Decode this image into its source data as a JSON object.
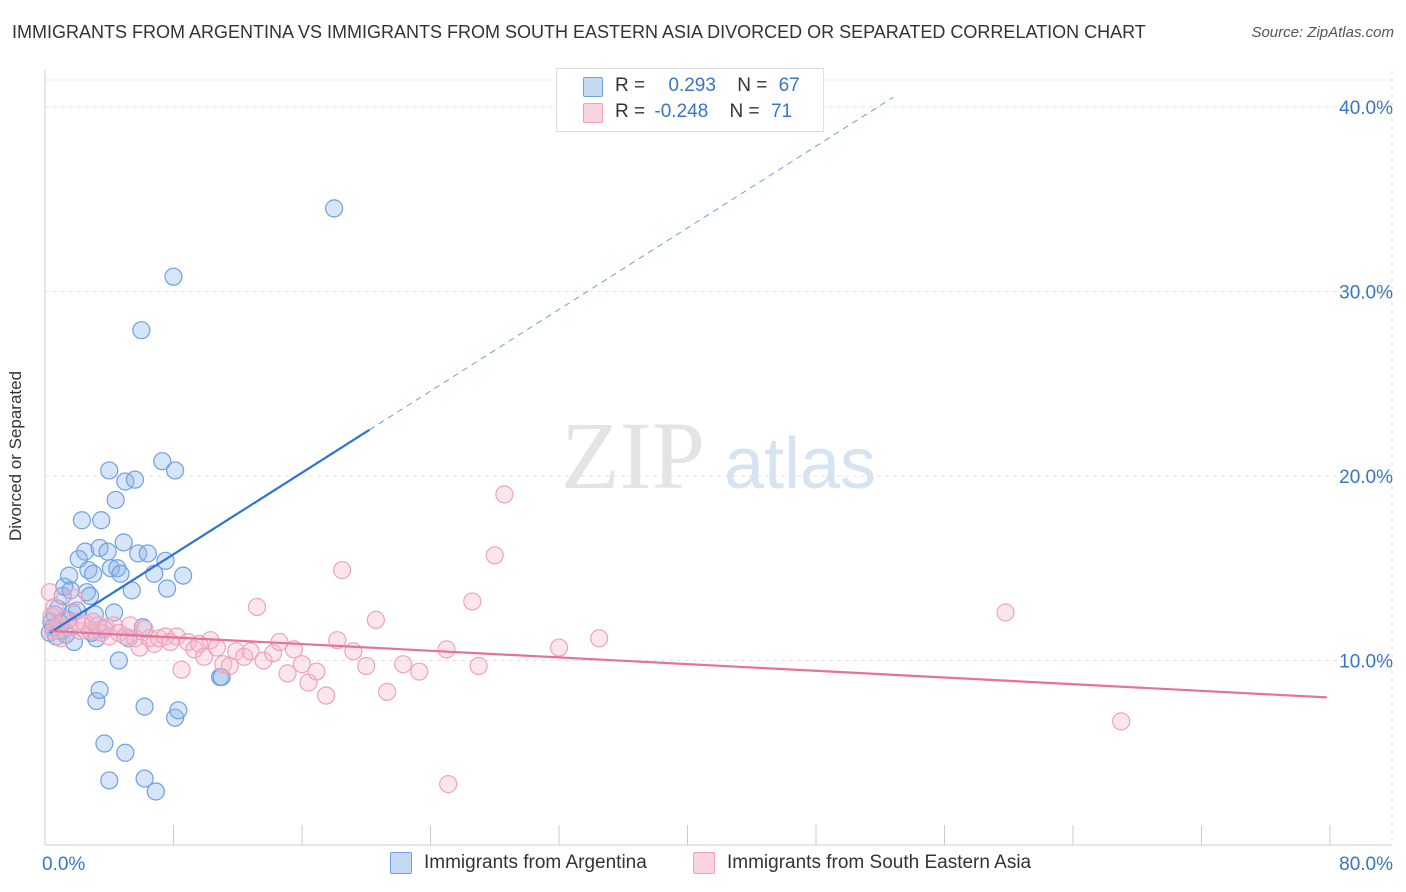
{
  "title": "IMMIGRANTS FROM ARGENTINA VS IMMIGRANTS FROM SOUTH EASTERN ASIA DIVORCED OR SEPARATED CORRELATION CHART",
  "source": "Source: ZipAtlas.com",
  "watermark": {
    "zip": "ZIP",
    "atlas": "atlas"
  },
  "legend": {
    "rows": [
      {
        "r_label": "R =",
        "r_value": "0.293",
        "n_label": "N =",
        "n_value": "67",
        "color": "#6fa0e0"
      },
      {
        "r_label": "R =",
        "r_value": "-0.248",
        "n_label": "N =",
        "n_value": "71",
        "color": "#f0a0b8"
      }
    ]
  },
  "colors": {
    "blue": "#6fa0e0",
    "blue_line": "#2f74d0",
    "pink": "#f0a0b8",
    "pink_line": "#e8709a",
    "tick_label": "#3a75c4"
  },
  "chart_data": {
    "type": "scatter",
    "title": "IMMIGRANTS FROM ARGENTINA VS IMMIGRANTS FROM SOUTH EASTERN ASIA DIVORCED OR SEPARATED CORRELATION CHART",
    "xlabel": "",
    "ylabel": "Divorced or Separated",
    "xlim": [
      0,
      80
    ],
    "ylim": [
      0,
      42
    ],
    "x_tick_labels": [
      "0.0%",
      "80.0%"
    ],
    "y_ticks": [
      10,
      20,
      30,
      40
    ],
    "y_tick_labels": [
      "10.0%",
      "20.0%",
      "30.0%",
      "40.0%"
    ],
    "grid": true,
    "legend_position": "top-center",
    "series": [
      {
        "name": "Immigrants from Argentina",
        "color": "#6fa0e0",
        "points": [
          [
            0.3,
            11.5
          ],
          [
            0.4,
            12.1
          ],
          [
            0.5,
            11.8
          ],
          [
            0.6,
            12.5
          ],
          [
            0.7,
            11.3
          ],
          [
            0.8,
            12.8
          ],
          [
            0.9,
            11.6
          ],
          [
            1.0,
            12.0
          ],
          [
            1.1,
            13.5
          ],
          [
            1.2,
            14.0
          ],
          [
            1.3,
            11.4
          ],
          [
            1.4,
            12.2
          ],
          [
            1.5,
            14.6
          ],
          [
            1.6,
            13.8
          ],
          [
            1.7,
            12.6
          ],
          [
            1.8,
            11.0
          ],
          [
            2.0,
            12.7
          ],
          [
            2.1,
            15.5
          ],
          [
            2.3,
            17.6
          ],
          [
            2.5,
            15.9
          ],
          [
            2.6,
            13.7
          ],
          [
            2.7,
            14.9
          ],
          [
            2.8,
            13.5
          ],
          [
            3.0,
            14.7
          ],
          [
            3.1,
            12.5
          ],
          [
            3.2,
            11.2
          ],
          [
            3.4,
            16.1
          ],
          [
            3.5,
            17.6
          ],
          [
            3.7,
            11.7
          ],
          [
            3.9,
            15.9
          ],
          [
            4.1,
            15.0
          ],
          [
            4.3,
            12.6
          ],
          [
            4.4,
            18.7
          ],
          [
            4.5,
            15.0
          ],
          [
            4.7,
            14.7
          ],
          [
            4.9,
            16.4
          ],
          [
            5.0,
            19.7
          ],
          [
            5.2,
            11.2
          ],
          [
            5.4,
            13.8
          ],
          [
            5.6,
            19.8
          ],
          [
            5.8,
            15.8
          ],
          [
            6.1,
            11.8
          ],
          [
            6.4,
            15.8
          ],
          [
            6.8,
            14.7
          ],
          [
            7.3,
            20.8
          ],
          [
            7.5,
            15.4
          ],
          [
            7.6,
            13.9
          ],
          [
            8.1,
            20.3
          ],
          [
            8.6,
            14.6
          ],
          [
            4.0,
            20.3
          ],
          [
            6.0,
            27.9
          ],
          [
            8.0,
            30.8
          ],
          [
            18.0,
            34.5
          ],
          [
            3.2,
            7.8
          ],
          [
            3.4,
            8.4
          ],
          [
            3.7,
            5.5
          ],
          [
            4.6,
            10.0
          ],
          [
            5.0,
            5.0
          ],
          [
            6.2,
            7.5
          ],
          [
            6.2,
            3.6
          ],
          [
            6.9,
            2.9
          ],
          [
            10.9,
            9.1
          ],
          [
            11.0,
            9.1
          ],
          [
            8.1,
            6.9
          ],
          [
            8.3,
            7.3
          ],
          [
            4.0,
            3.5
          ],
          [
            2.9,
            11.5
          ]
        ],
        "trend": {
          "x": [
            0.3,
            20.2
          ],
          "y": [
            11.5,
            22.5
          ],
          "dashed_extension_to_x": 52.8
        }
      },
      {
        "name": "Immigrants from South Eastern Asia",
        "color": "#f0a0b8",
        "points": [
          [
            0.3,
            13.7
          ],
          [
            0.4,
            12.4
          ],
          [
            0.5,
            11.6
          ],
          [
            0.6,
            12.9
          ],
          [
            0.8,
            11.9
          ],
          [
            1.0,
            11.2
          ],
          [
            1.2,
            12.2
          ],
          [
            1.5,
            11.8
          ],
          [
            1.8,
            13.4
          ],
          [
            2.0,
            12.1
          ],
          [
            2.2,
            11.6
          ],
          [
            2.5,
            12.0
          ],
          [
            2.8,
            11.6
          ],
          [
            3.0,
            12.1
          ],
          [
            3.3,
            11.9
          ],
          [
            3.5,
            11.5
          ],
          [
            3.8,
            11.8
          ],
          [
            4.0,
            11.3
          ],
          [
            4.3,
            11.9
          ],
          [
            4.6,
            11.5
          ],
          [
            5.0,
            11.3
          ],
          [
            5.3,
            11.9
          ],
          [
            5.6,
            11.2
          ],
          [
            5.9,
            10.7
          ],
          [
            6.2,
            11.7
          ],
          [
            6.5,
            11.2
          ],
          [
            6.8,
            10.9
          ],
          [
            7.1,
            11.2
          ],
          [
            7.5,
            11.3
          ],
          [
            7.8,
            11.0
          ],
          [
            8.2,
            11.3
          ],
          [
            8.5,
            9.5
          ],
          [
            8.9,
            11.0
          ],
          [
            9.3,
            10.6
          ],
          [
            9.6,
            10.9
          ],
          [
            9.9,
            10.2
          ],
          [
            10.3,
            11.1
          ],
          [
            10.7,
            10.7
          ],
          [
            11.1,
            9.8
          ],
          [
            11.5,
            9.7
          ],
          [
            11.9,
            10.5
          ],
          [
            12.4,
            10.2
          ],
          [
            12.8,
            10.5
          ],
          [
            13.2,
            12.9
          ],
          [
            13.6,
            10.0
          ],
          [
            14.2,
            10.4
          ],
          [
            14.6,
            11.0
          ],
          [
            15.1,
            9.3
          ],
          [
            15.5,
            10.6
          ],
          [
            16.0,
            9.8
          ],
          [
            16.4,
            8.8
          ],
          [
            16.9,
            9.4
          ],
          [
            17.5,
            8.1
          ],
          [
            18.2,
            11.1
          ],
          [
            18.5,
            14.9
          ],
          [
            19.2,
            10.5
          ],
          [
            20.0,
            9.7
          ],
          [
            20.6,
            12.2
          ],
          [
            21.3,
            8.3
          ],
          [
            22.3,
            9.8
          ],
          [
            23.3,
            9.4
          ],
          [
            25.0,
            10.6
          ],
          [
            26.6,
            13.2
          ],
          [
            27.0,
            9.7
          ],
          [
            28.6,
            19.0
          ],
          [
            28.0,
            15.7
          ],
          [
            34.5,
            11.2
          ],
          [
            32.0,
            10.7
          ],
          [
            59.8,
            12.6
          ],
          [
            67.0,
            6.7
          ],
          [
            25.1,
            3.3
          ]
        ],
        "trend": {
          "x": [
            0.3,
            79.8
          ],
          "y": [
            11.6,
            8.0
          ]
        }
      }
    ]
  }
}
